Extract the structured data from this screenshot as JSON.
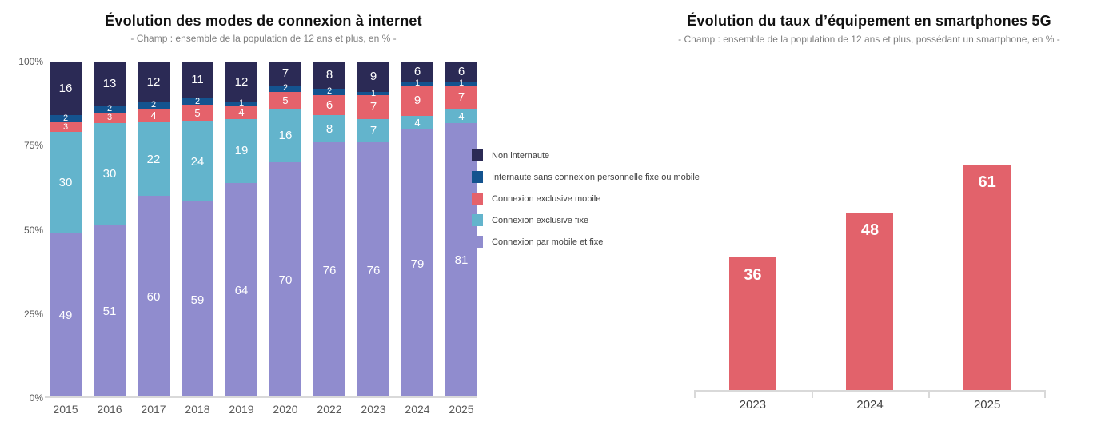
{
  "page": {
    "background": "#ffffff"
  },
  "chart_data": [
    {
      "type": "bar",
      "stacked": true,
      "stacked_100_percent": true,
      "title": "Évolution des modes de connexion à internet",
      "subtitle": "- Champ : ensemble de la population de 12 ans et plus, en % -",
      "categories": [
        "2015",
        "2016",
        "2017",
        "2018",
        "2019",
        "2020",
        "2022",
        "2023",
        "2024",
        "2025"
      ],
      "series": [
        {
          "name": "Connexion par mobile et fixe",
          "color": "#908cce",
          "values": [
            49,
            51,
            60,
            59,
            64,
            70,
            76,
            76,
            79,
            81
          ]
        },
        {
          "name": "Connexion exclusive fixe",
          "color": "#63b4cc",
          "values": [
            30,
            30,
            22,
            24,
            19,
            16,
            8,
            7,
            4,
            4
          ]
        },
        {
          "name": "Connexion exclusive mobile",
          "color": "#e5626b",
          "values": [
            3,
            3,
            4,
            5,
            4,
            5,
            6,
            7,
            9,
            7
          ]
        },
        {
          "name": "Internaute sans connexion personnelle fixe ou mobile",
          "color": "#14538f",
          "values": [
            2,
            2,
            2,
            2,
            1,
            2,
            2,
            1,
            1,
            1
          ]
        },
        {
          "name": "Non internaute",
          "color": "#2b2a55",
          "values": [
            16,
            13,
            12,
            11,
            12,
            7,
            8,
            9,
            6,
            6
          ]
        }
      ],
      "legend_order": [
        "Non internaute",
        "Internaute sans connexion personnelle fixe ou mobile",
        "Connexion exclusive mobile",
        "Connexion exclusive fixe",
        "Connexion par mobile et fixe"
      ],
      "legend_position": "right",
      "y_ticks": [
        "0%",
        "25%",
        "50%",
        "75%",
        "100%"
      ],
      "ylim": [
        0,
        100
      ],
      "grid": false,
      "value_label_color": "#ffffff",
      "axis_color": "#d9d9d9"
    },
    {
      "type": "bar",
      "title": "Évolution du taux d’équipement en smartphones 5G",
      "subtitle": "- Champ : ensemble de la population de 12 ans et plus, possédant un smartphone, en % -",
      "categories": [
        "2023",
        "2024",
        "2025"
      ],
      "values": [
        36,
        48,
        61
      ],
      "bar_color": "#e2626b",
      "value_label_color": "#ffffff",
      "ylim": [
        0,
        89
      ],
      "grid": false,
      "axis_color": "#d9d9d9"
    }
  ]
}
